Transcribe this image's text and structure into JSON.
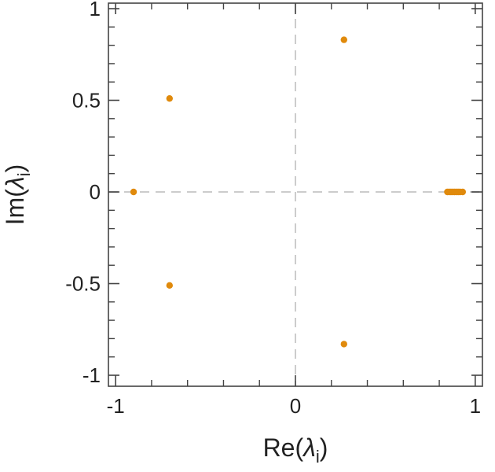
{
  "chart_data": {
    "type": "scatter",
    "title": "",
    "xlabel": "Re(λi)",
    "ylabel": "Im(λi)",
    "xlabel_parts": {
      "prefix": "Re(",
      "symbol": "λ",
      "sub": "i",
      "suffix": ")"
    },
    "ylabel_parts": {
      "prefix": "Im(",
      "symbol": "λ",
      "sub": "i",
      "suffix": ")"
    },
    "xlim": [
      -1.04,
      1.04
    ],
    "ylim": [
      -1.06,
      1.03
    ],
    "x_ticks": [
      {
        "value": -1,
        "label": "-1"
      },
      {
        "value": 0,
        "label": "0"
      },
      {
        "value": 1,
        "label": "1"
      }
    ],
    "y_ticks": [
      {
        "value": 1,
        "label": "1"
      },
      {
        "value": 0.5,
        "label": "0.5"
      },
      {
        "value": 0,
        "label": "0"
      },
      {
        "value": -0.5,
        "label": "-0.5"
      },
      {
        "value": -1,
        "label": "-1"
      }
    ],
    "x_minor_step": 0.2,
    "y_minor_step": 0.1,
    "grid": false,
    "reference_lines": {
      "x0": true,
      "y0": true
    },
    "marker_color": "#e08a0c",
    "reference_line_color": "#cccccc",
    "series": [
      {
        "points": [
          {
            "x": 0.27,
            "y": 0.83
          },
          {
            "x": 0.27,
            "y": -0.83
          },
          {
            "x": -0.7,
            "y": 0.51
          },
          {
            "x": -0.7,
            "y": -0.51
          },
          {
            "x": -0.9,
            "y": 0.0
          },
          {
            "x": 0.845,
            "y": 0.0
          },
          {
            "x": 0.855,
            "y": 0.0
          },
          {
            "x": 0.865,
            "y": 0.0
          },
          {
            "x": 0.875,
            "y": 0.0
          },
          {
            "x": 0.885,
            "y": 0.0
          },
          {
            "x": 0.895,
            "y": 0.0
          },
          {
            "x": 0.905,
            "y": 0.0
          },
          {
            "x": 0.915,
            "y": 0.0
          },
          {
            "x": 0.93,
            "y": 0.0
          }
        ]
      }
    ]
  }
}
